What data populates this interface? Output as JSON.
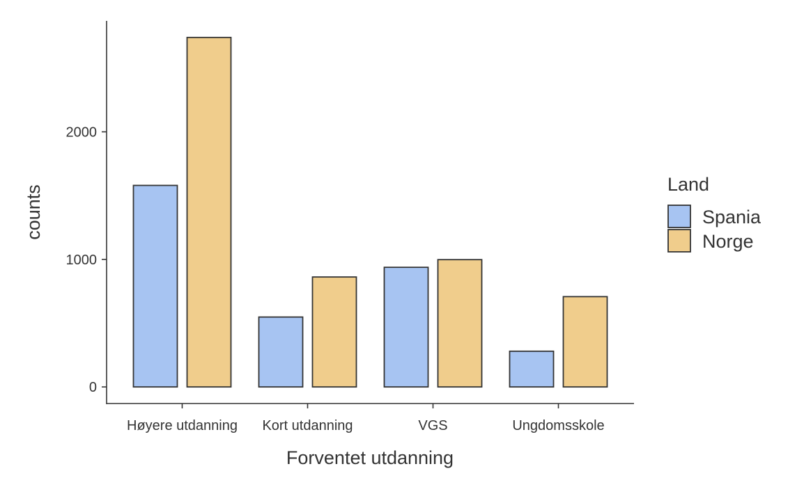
{
  "chart_data": {
    "type": "bar",
    "categories": [
      "Høyere utdanning",
      "Kort utdanning",
      "VGS",
      "Ungdomsskole"
    ],
    "series": [
      {
        "name": "Spania",
        "values": [
          1580,
          548,
          938,
          280
        ],
        "color": "#a7c4f2"
      },
      {
        "name": "Norge",
        "values": [
          2740,
          862,
          998,
          708
        ],
        "color": "#f0cd8c"
      }
    ],
    "xlabel": "Forventet utdanning",
    "ylabel": "counts",
    "ylim": [
      -130,
      2870
    ],
    "yticks": [
      0,
      1000,
      2000
    ],
    "legend": {
      "title": "Land",
      "position": "right"
    },
    "grid": false
  }
}
